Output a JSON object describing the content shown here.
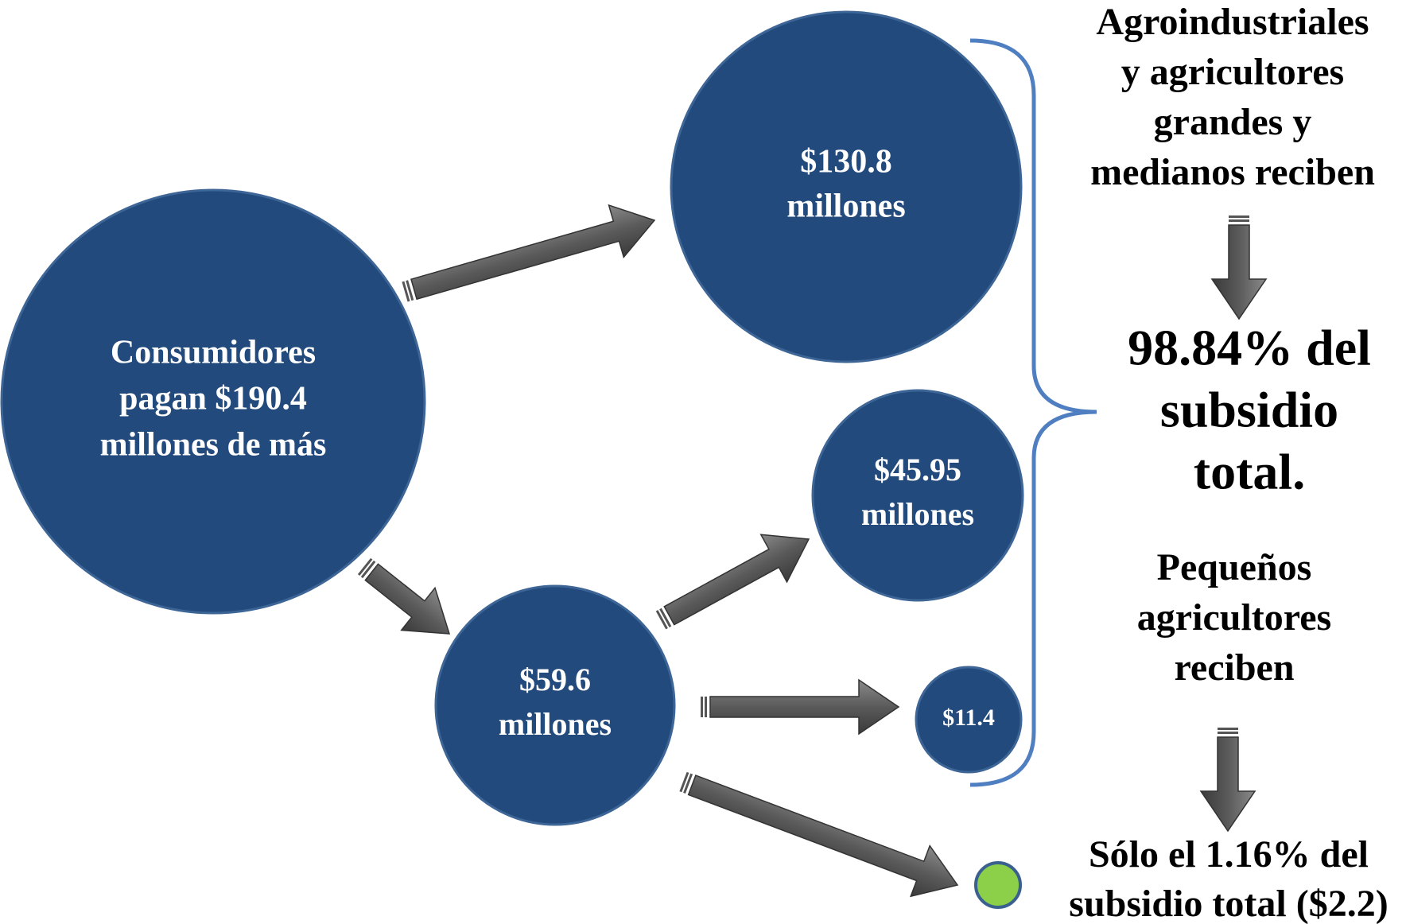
{
  "nodes": [
    {
      "label": [
        "Consumidores",
        "pagan $190.4",
        "millones de más"
      ]
    },
    {
      "label": [
        "$130.8",
        "millones"
      ]
    },
    {
      "label": [
        "$45.95",
        "millones"
      ]
    },
    {
      "label": [
        "$59.6",
        "millones"
      ]
    },
    {
      "label": [
        "$11.4"
      ]
    }
  ],
  "notes": [
    {
      "lines": [
        "Agroindustriales",
        "y agricultores",
        "grandes y",
        "medianos reciben"
      ]
    },
    {
      "lines": [
        "98.84% del",
        "subsidio",
        "total."
      ]
    },
    {
      "lines": [
        "Pequeños",
        "agricultores",
        "reciben"
      ]
    },
    {
      "lines": [
        "Sólo el 1.16% del",
        "subsidio total ($2.2)"
      ]
    }
  ]
}
